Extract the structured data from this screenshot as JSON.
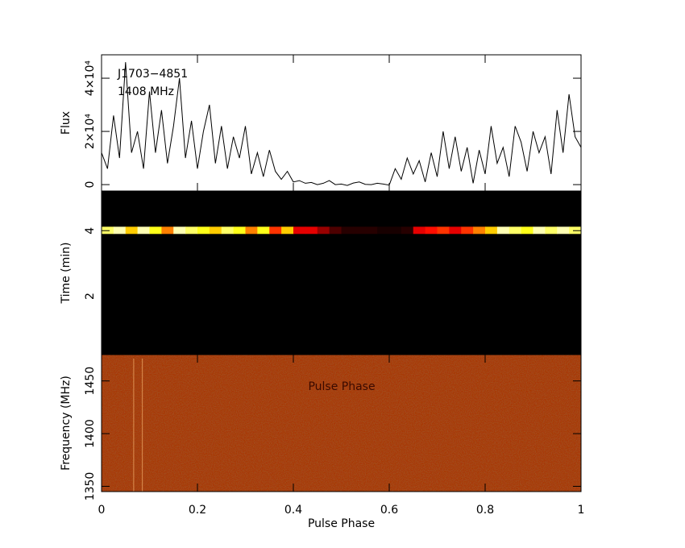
{
  "chart_data": [
    {
      "type": "line",
      "ylabel": "Flux",
      "annotations": [
        "J1703−4851",
        "1408 MHz"
      ],
      "x": [
        0,
        0.0125,
        0.025,
        0.0375,
        0.05,
        0.0625,
        0.075,
        0.0875,
        0.1,
        0.1125,
        0.125,
        0.1375,
        0.15,
        0.1625,
        0.175,
        0.1875,
        0.2,
        0.2125,
        0.225,
        0.2375,
        0.25,
        0.2625,
        0.275,
        0.2875,
        0.3,
        0.3125,
        0.325,
        0.3375,
        0.35,
        0.3625,
        0.375,
        0.3875,
        0.4,
        0.4125,
        0.425,
        0.4375,
        0.45,
        0.4625,
        0.475,
        0.4875,
        0.5,
        0.5125,
        0.525,
        0.5375,
        0.55,
        0.5625,
        0.575,
        0.5875,
        0.6,
        0.6125,
        0.625,
        0.6375,
        0.65,
        0.6625,
        0.675,
        0.6875,
        0.7,
        0.7125,
        0.725,
        0.7375,
        0.75,
        0.7625,
        0.775,
        0.7875,
        0.8,
        0.8125,
        0.825,
        0.8375,
        0.85,
        0.8625,
        0.875,
        0.8875,
        0.9,
        0.9125,
        0.925,
        0.9375,
        0.95,
        0.9625,
        0.975,
        0.9875,
        1
      ],
      "values": [
        12000,
        6000,
        26000,
        10000,
        46000,
        12000,
        20000,
        6000,
        35000,
        12000,
        28000,
        8000,
        22000,
        40000,
        10000,
        24000,
        6000,
        20000,
        30000,
        8000,
        22000,
        6000,
        18000,
        10000,
        22000,
        4000,
        12000,
        3000,
        13000,
        5000,
        2000,
        5000,
        1000,
        1500,
        500,
        800,
        0,
        500,
        1500,
        0,
        200,
        -300,
        600,
        1000,
        100,
        0,
        500,
        200,
        -200,
        6000,
        2000,
        10000,
        4000,
        9000,
        1000,
        12000,
        3000,
        20000,
        6000,
        18000,
        5000,
        14000,
        500,
        13000,
        4000,
        22000,
        8000,
        14000,
        3000,
        22000,
        16000,
        5000,
        20000,
        12000,
        18000,
        4000,
        28000,
        12000,
        34000,
        18000,
        14000
      ],
      "color": "#000000",
      "xlim": [
        0,
        1
      ],
      "xticks": [
        0,
        0.2,
        0.4,
        0.6,
        0.8,
        1
      ],
      "ylim": [
        -2400,
        48800
      ],
      "yticks": [
        0,
        {
          "value": 20000,
          "label": "2×10⁴"
        },
        {
          "value": 40000,
          "label": "4×10⁴"
        }
      ]
    },
    {
      "type": "heatmap",
      "ylabel": "Time (min)",
      "colormap": "heat",
      "rows": [
        {
          "y": [
            3.9,
            4.12
          ],
          "values": [
            0.8,
            0.9,
            0.6,
            0.9,
            0.7,
            0.5,
            0.9,
            0.8,
            0.7,
            0.6,
            0.8,
            0.7,
            0.5,
            0.7,
            0.4,
            0.6,
            0.3,
            0.3,
            0.2,
            0.1,
            0.05,
            0.05,
            0.05,
            0.03,
            0.03,
            0.05,
            0.3,
            0.35,
            0.4,
            0.3,
            0.4,
            0.5,
            0.6,
            0.9,
            0.8,
            0.7,
            0.9,
            0.8,
            0.9,
            0.8
          ]
        }
      ],
      "xlim": [
        0,
        1
      ],
      "xticks": [
        0,
        0.2,
        0.4,
        0.6,
        0.8,
        1
      ],
      "ylim": [
        0.22,
        5.21
      ],
      "yticks": [
        2,
        4
      ]
    },
    {
      "type": "image",
      "ylabel": "Frequency (MHz)",
      "xlabel": "Pulse Phase",
      "annotations": [
        "Pulse Phase"
      ],
      "color": "#a8380f",
      "lines_x": [
        0.067,
        0.085
      ],
      "xlim": [
        0,
        1
      ],
      "xticks": [
        0,
        0.2,
        0.4,
        0.6,
        0.8,
        1
      ],
      "ylim": [
        1345,
        1475
      ],
      "yticks": [
        1350,
        1400,
        1450
      ]
    }
  ]
}
